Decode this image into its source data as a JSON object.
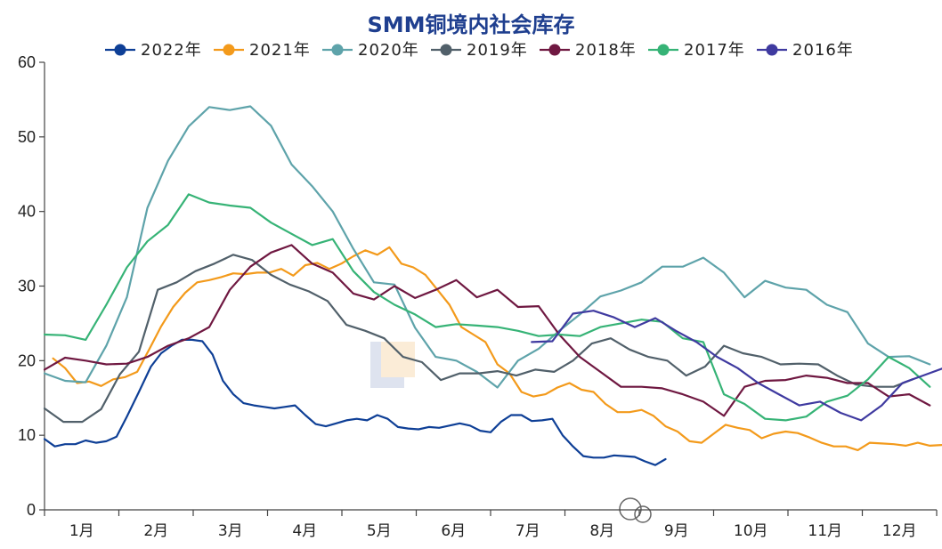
{
  "chart_data": {
    "type": "line",
    "title": "SMM铜境内社会库存",
    "xlabel": "",
    "ylabel": "",
    "ylim": [
      0,
      60
    ],
    "yticks": [
      0,
      10,
      20,
      30,
      40,
      50,
      60
    ],
    "x_tick_labels": [
      "1月",
      "2月",
      "3月",
      "4月",
      "5月",
      "6月",
      "7月",
      "8月",
      "9月",
      "10月",
      "11月",
      "12月"
    ],
    "xlim": [
      0,
      52
    ],
    "grid": false,
    "legend_position": "top",
    "series": [
      {
        "name": "2022年",
        "color": "#0e3f96",
        "x": [
          0,
          0.6,
          1.2,
          1.8,
          2.4,
          3,
          3.6,
          4.2,
          4.8,
          5.5,
          6.2,
          6.8,
          7.4,
          8,
          8.6,
          9.2,
          9.8,
          10.4,
          11,
          11.6,
          12.2,
          12.8,
          13.4,
          14,
          14.6,
          15.2,
          15.8,
          16.4,
          17,
          17.6,
          18.2,
          18.8,
          19.4,
          20,
          20.6,
          21.2,
          21.8,
          22.4,
          23,
          23.6,
          24.2,
          24.8,
          25.4,
          26,
          26.6,
          27.2,
          27.8,
          28.4,
          29,
          29.6,
          30.2,
          30.8,
          31.4,
          32,
          32.6,
          33.2,
          33.8,
          34.4,
          35,
          35.6,
          36.2
        ],
        "y": [
          9.5,
          8.5,
          8.8,
          8.8,
          9.3,
          9.0,
          9.2,
          9.8,
          12.5,
          15.8,
          19.2,
          21.0,
          22.0,
          22.8,
          22.8,
          22.6,
          20.8,
          17.3,
          15.5,
          14.3,
          14.0,
          13.8,
          13.6,
          13.8,
          14.0,
          12.7,
          11.5,
          11.2,
          11.6,
          12.0,
          12.2,
          12.0,
          12.7,
          12.2,
          11.1,
          10.9,
          10.8,
          11.1,
          11.0,
          11.3,
          11.6,
          11.3,
          10.6,
          10.4,
          11.8,
          12.7,
          12.7,
          11.9,
          12.0,
          12.2,
          10.0,
          8.5,
          7.2,
          7.0,
          7.0,
          7.3,
          7.2,
          7.1,
          6.5,
          6.0,
          6.8
        ]
      },
      {
        "name": "2021年",
        "color": "#f39a1b",
        "x": [
          0.5,
          1.2,
          1.9,
          2.6,
          3.3,
          4,
          4.7,
          5.4,
          6.1,
          6.8,
          7.5,
          8.2,
          8.9,
          9.6,
          10.3,
          11,
          11.7,
          12.4,
          13.1,
          13.8,
          14.5,
          15.2,
          15.9,
          16.6,
          17.3,
          18,
          18.7,
          19.4,
          20.1,
          20.8,
          21.5,
          22.2,
          22.9,
          23.6,
          24.3,
          25,
          25.7,
          26.4,
          27.1,
          27.8,
          28.5,
          29.2,
          29.9,
          30.6,
          31.3,
          32,
          32.7,
          33.4,
          34.1,
          34.8,
          35.5,
          36.2,
          36.9,
          37.6,
          38.3,
          39,
          39.7,
          40.4,
          41.1,
          41.8,
          42.5,
          43.2,
          43.9,
          44.6,
          45.3,
          46,
          46.7,
          47.4,
          48.1,
          48.8,
          49.5,
          50.2,
          50.9,
          51.6,
          52.3
        ],
        "y": [
          20.3,
          19.0,
          17.0,
          17.2,
          16.6,
          17.5,
          17.8,
          18.5,
          21.5,
          24.6,
          27.2,
          29.1,
          30.5,
          30.8,
          31.2,
          31.7,
          31.6,
          31.8,
          31.8,
          32.3,
          31.4,
          32.8,
          33.1,
          32.3,
          33.0,
          34.0,
          34.8,
          34.2,
          35.2,
          33.0,
          32.5,
          31.5,
          29.5,
          27.5,
          24.5,
          23.5,
          22.5,
          19.5,
          18.3,
          15.8,
          15.2,
          15.5,
          16.4,
          17.0,
          16.1,
          15.8,
          14.2,
          13.1,
          13.1,
          13.4,
          12.6,
          11.2,
          10.5,
          9.2,
          9.0,
          10.2,
          11.4,
          11.0,
          10.7,
          9.6,
          10.2,
          10.5,
          10.3,
          9.7,
          9.0,
          8.5,
          8.5,
          8.0,
          9.0,
          8.9,
          8.8,
          8.6,
          9.0,
          8.6,
          8.7
        ]
      },
      {
        "name": "2020年",
        "color": "#5ea3aa",
        "x": [
          0,
          1.2,
          2.4,
          3.6,
          4.8,
          6,
          7.2,
          8.4,
          9.6,
          10.8,
          12,
          13.2,
          14.4,
          15.6,
          16.8,
          18,
          19.2,
          20.4,
          21.6,
          22.8,
          24,
          25.2,
          26.4,
          27.6,
          28.8,
          30,
          31.2,
          32.4,
          33.6,
          34.8,
          36,
          37.2,
          38.4,
          39.6,
          40.8,
          42,
          43.2,
          44.4,
          45.6,
          46.8,
          48,
          49.2,
          50.4,
          51.6
        ],
        "y": [
          18.3,
          17.3,
          17.1,
          22.0,
          28.5,
          40.5,
          46.8,
          51.4,
          54.0,
          53.6,
          54.1,
          51.5,
          46.3,
          43.4,
          40.0,
          35.0,
          30.5,
          30.2,
          24.4,
          20.5,
          20.0,
          18.5,
          16.4,
          20.0,
          21.6,
          24.0,
          26.2,
          28.6,
          29.4,
          30.5,
          32.6,
          32.6,
          33.8,
          31.8,
          28.5,
          30.7,
          29.8,
          29.5,
          27.5,
          26.5,
          22.3,
          20.5,
          20.6,
          19.5
        ]
      },
      {
        "name": "2019年",
        "color": "#51606a",
        "x": [
          0,
          1.1,
          2.2,
          3.3,
          4.4,
          5.5,
          6.6,
          7.7,
          8.8,
          9.9,
          11,
          12.1,
          13.2,
          14.3,
          15.4,
          16.5,
          17.6,
          18.7,
          19.8,
          20.9,
          22,
          23.1,
          24.2,
          25.3,
          26.4,
          27.5,
          28.6,
          29.7,
          30.8,
          31.9,
          33,
          34.1,
          35.2,
          36.3,
          37.4,
          38.5,
          39.6,
          40.7,
          41.8,
          42.9,
          44,
          45.1,
          46.2,
          47.3,
          48.4,
          49.5,
          50.6
        ],
        "y": [
          13.6,
          11.8,
          11.8,
          13.5,
          18.2,
          21.2,
          29.5,
          30.5,
          32.0,
          33.0,
          34.2,
          33.5,
          31.5,
          30.2,
          29.3,
          28.0,
          24.8,
          24.0,
          23.0,
          20.5,
          19.8,
          17.4,
          18.3,
          18.3,
          18.6,
          18.0,
          18.8,
          18.5,
          20.0,
          22.3,
          23.0,
          21.5,
          20.5,
          20.0,
          18.0,
          19.2,
          22.0,
          21.0,
          20.5,
          19.5,
          19.6,
          19.5,
          18.0,
          16.8,
          16.5,
          16.5,
          17.5
        ]
      },
      {
        "name": "2018年",
        "color": "#6f1841",
        "x": [
          0,
          1.2,
          2.4,
          3.6,
          4.8,
          6,
          7.2,
          8.4,
          9.6,
          10.8,
          12,
          13.2,
          14.4,
          15.6,
          16.8,
          18,
          19.2,
          20.4,
          21.6,
          22.8,
          24,
          25.2,
          26.4,
          27.6,
          28.8,
          30,
          31.2,
          32.4,
          33.6,
          34.8,
          36,
          37.2,
          38.4,
          39.6,
          40.8,
          42,
          43.2,
          44.4,
          45.6,
          46.8,
          48,
          49.2,
          50.4,
          51.6
        ],
        "y": [
          18.8,
          20.4,
          20.0,
          19.5,
          19.6,
          20.5,
          22.0,
          23.0,
          24.5,
          29.5,
          32.6,
          34.5,
          35.5,
          33.0,
          31.8,
          29.0,
          28.2,
          30.0,
          28.4,
          29.5,
          30.8,
          28.5,
          29.5,
          27.2,
          27.3,
          23.5,
          20.5,
          18.5,
          16.5,
          16.5,
          16.3,
          15.5,
          14.5,
          12.6,
          16.5,
          17.3,
          17.4,
          18.0,
          17.7,
          17.0,
          17.0,
          15.2,
          15.5,
          14.0
        ]
      },
      {
        "name": "2017年",
        "color": "#36b376",
        "x": [
          0,
          1.2,
          2.4,
          3.6,
          4.8,
          6,
          7.2,
          8.4,
          9.6,
          10.8,
          12,
          13.2,
          14.4,
          15.6,
          16.8,
          18,
          19.2,
          20.4,
          21.6,
          22.8,
          24,
          25.2,
          26.4,
          27.6,
          28.8,
          30,
          31.2,
          32.4,
          33.6,
          34.8,
          36,
          37.2,
          38.4,
          39.6,
          40.8,
          42,
          43.2,
          44.4,
          45.6,
          46.8,
          48,
          49.2,
          50.4,
          51.6
        ],
        "y": [
          23.5,
          23.4,
          22.8,
          27.5,
          32.5,
          36.0,
          38.2,
          42.3,
          41.2,
          40.8,
          40.5,
          38.5,
          37.0,
          35.5,
          36.3,
          32.0,
          29.2,
          27.5,
          26.2,
          24.5,
          24.9,
          24.7,
          24.5,
          24.0,
          23.3,
          23.5,
          23.3,
          24.5,
          25.0,
          25.5,
          25.2,
          23.0,
          22.5,
          15.5,
          14.2,
          12.2,
          12.0,
          12.5,
          14.5,
          15.3,
          17.5,
          20.5,
          19.0,
          16.5
        ]
      },
      {
        "name": "2016年",
        "color": "#3f3aa0",
        "x": [
          28.4,
          29.6,
          30.8,
          32,
          33.2,
          34.4,
          35.6,
          36.8,
          38,
          39.2,
          40.4,
          41.6,
          42.8,
          44,
          45.2,
          46.4,
          47.6,
          48.8,
          50,
          51.2,
          52.4
        ],
        "y": [
          22.5,
          22.6,
          26.3,
          26.7,
          25.8,
          24.5,
          25.7,
          24.0,
          22.5,
          20.5,
          19.0,
          17.0,
          15.5,
          14.0,
          14.5,
          13.0,
          12.0,
          14.0,
          17.0,
          18.0,
          19.0
        ]
      }
    ]
  }
}
